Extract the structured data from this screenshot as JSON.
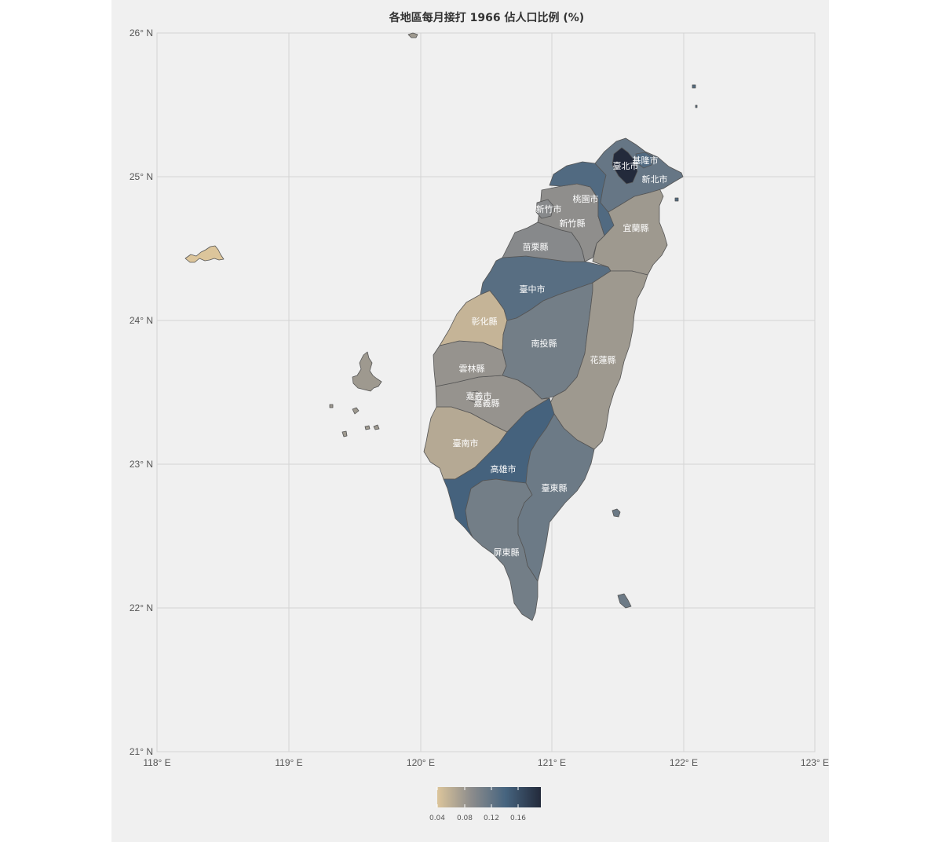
{
  "title": "各地區每月接打 1966 佔人口比例 (%)",
  "axes": {
    "x_ticks": [
      "118° E",
      "119° E",
      "120° E",
      "121° E",
      "122° E",
      "123° E"
    ],
    "y_ticks": [
      "26° N",
      "25° N",
      "24° N",
      "23° N",
      "22° N",
      "21° N"
    ]
  },
  "legend": {
    "ticks": [
      "0.04",
      "0.08",
      "0.12",
      "0.16"
    ],
    "colors": [
      "#dcc59b",
      "#8c8c8c",
      "#46647f",
      "#232a3b"
    ]
  },
  "regions": [
    {
      "name": "臺北市",
      "value": 0.19
    },
    {
      "name": "基隆市",
      "value": 0.13
    },
    {
      "name": "新北市",
      "value": 0.115
    },
    {
      "name": "桃園市",
      "value": 0.13
    },
    {
      "name": "新竹市",
      "value": 0.09
    },
    {
      "name": "新竹縣",
      "value": 0.085
    },
    {
      "name": "宜蘭縣",
      "value": 0.075
    },
    {
      "name": "苗栗縣",
      "value": 0.09
    },
    {
      "name": "臺中市",
      "value": 0.125
    },
    {
      "name": "彰化縣",
      "value": 0.05
    },
    {
      "name": "南投縣",
      "value": 0.105
    },
    {
      "name": "花蓮縣",
      "value": 0.075
    },
    {
      "name": "雲林縣",
      "value": 0.08
    },
    {
      "name": "嘉義市",
      "value": 0.08
    },
    {
      "name": "嘉義縣",
      "value": 0.08
    },
    {
      "name": "臺南市",
      "value": 0.06
    },
    {
      "name": "高雄市",
      "value": 0.14
    },
    {
      "name": "臺東縣",
      "value": 0.11
    },
    {
      "name": "屏東縣",
      "value": 0.105
    },
    {
      "name": "澎湖縣",
      "value": 0.075
    },
    {
      "name": "金門縣",
      "value": 0.035
    },
    {
      "name": "連江縣",
      "value": 0.075
    }
  ]
}
